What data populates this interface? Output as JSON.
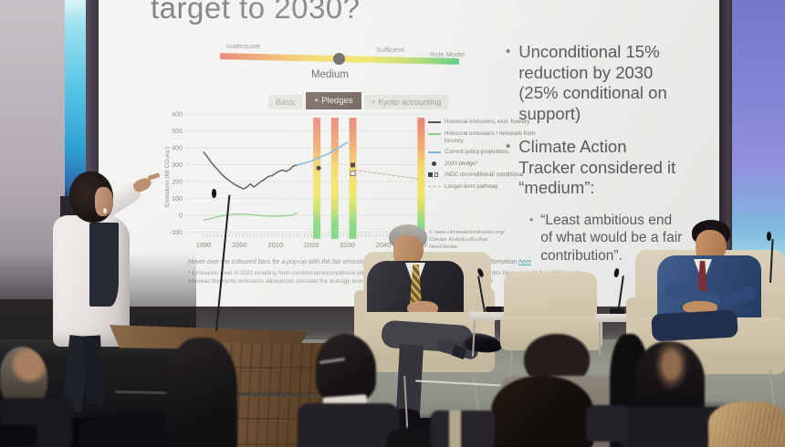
{
  "slide": {
    "title": "target to 2030?",
    "rating_scale": {
      "left_label": "Inadequate",
      "mid_label": "Sufficient",
      "right_label": "Role Model",
      "marker_label": "Medium",
      "gradient_colors": [
        "#e06a58",
        "#eda04e",
        "#efd34e",
        "#eee44f",
        "#b5d95f",
        "#52c97c"
      ]
    },
    "tabs": [
      {
        "label": "Basic",
        "active": false
      },
      {
        "label": "+ Pledges",
        "active": true
      },
      {
        "label": "+ Kyoto accounting",
        "active": false
      }
    ],
    "attribution_lines": [
      "© www.climateactiontracker.org/",
      "Climate Analytics/Ecofys/",
      "NewClimate"
    ],
    "footnote_hover": {
      "text": "Hover over the coloured bars for a pop-up with the fair emissions range per effort sharing category. More information",
      "link_text": "here"
    },
    "footnote_pledge": "* Emissions level in 2020 resulting from conditional/unconditional pledge. This differs from the Kyoto target quantities: this figure depicts final 2020 levels, whereas the Kyoto emissions allowances consider the average level of emissions over the second commitment period.",
    "bullets": [
      {
        "text": "Unconditional 15% reduction by 2030 (25% conditional on support)"
      },
      {
        "text": "Climate Action Tracker considered it “medium”:",
        "sub": "“Least ambitious end of what would be a fair contribution”."
      }
    ]
  },
  "chart_data": {
    "type": "line",
    "title": "",
    "xlabel": "",
    "ylabel": "Emissions (Mt CO₂eq.)",
    "ylim": [
      -100,
      600
    ],
    "yticks": [
      600,
      500,
      400,
      300,
      200,
      100,
      0,
      -100
    ],
    "xticks": [
      1990,
      2000,
      2010,
      2020,
      2030,
      2040,
      2050
    ],
    "grid": true,
    "legend_position": "right",
    "series": [
      {
        "name": "Historical emissions, excl. forestry",
        "color": "#3a3a3a",
        "width": 1.4,
        "style": "solid",
        "points": [
          [
            1990,
            375
          ],
          [
            1991,
            348
          ],
          [
            1992,
            318
          ],
          [
            1993,
            292
          ],
          [
            1994,
            268
          ],
          [
            1995,
            244
          ],
          [
            1996,
            224
          ],
          [
            1997,
            208
          ],
          [
            1998,
            192
          ],
          [
            1999,
            178
          ],
          [
            2000,
            168
          ],
          [
            2001,
            156
          ],
          [
            2002,
            166
          ],
          [
            2003,
            186
          ],
          [
            2004,
            168
          ],
          [
            2005,
            184
          ],
          [
            2006,
            200
          ],
          [
            2007,
            214
          ],
          [
            2008,
            230
          ],
          [
            2009,
            234
          ],
          [
            2010,
            248
          ],
          [
            2011,
            262
          ],
          [
            2012,
            268
          ],
          [
            2013,
            260
          ],
          [
            2014,
            272
          ],
          [
            2015,
            292
          ],
          [
            2016,
            297
          ]
        ]
      },
      {
        "name": "Historical emissions / removals from forestry",
        "color": "#7cc87a",
        "width": 1.2,
        "style": "solid",
        "points": [
          [
            1990,
            -28
          ],
          [
            1992,
            -20
          ],
          [
            1994,
            -8
          ],
          [
            1996,
            0
          ],
          [
            1998,
            6
          ],
          [
            2000,
            8
          ],
          [
            2002,
            6
          ],
          [
            2004,
            2
          ],
          [
            2006,
            -2
          ],
          [
            2008,
            -5
          ],
          [
            2010,
            -6
          ],
          [
            2012,
            -4
          ],
          [
            2014,
            -2
          ],
          [
            2015,
            4
          ],
          [
            2016,
            14
          ]
        ]
      },
      {
        "name": "Current policy projections",
        "color": "#6aa8d8",
        "width": 1.5,
        "style": "solid",
        "points": [
          [
            2016,
            297
          ],
          [
            2020,
            322
          ],
          [
            2025,
            368
          ],
          [
            2030,
            432
          ]
        ]
      },
      {
        "name": "Longer-term pathway",
        "color": "#c49a92",
        "width": 1,
        "style": "dashed",
        "points": [
          [
            2032,
            268
          ],
          [
            2050,
            215
          ]
        ]
      }
    ],
    "markers": [
      {
        "name": "2020 pledge*",
        "shape": "dot",
        "x": 2022,
        "y": 280
      },
      {
        "name": "INDC unconditional",
        "shape": "square-filled",
        "x": 2031.5,
        "y": 298
      },
      {
        "name": "INDC conditional",
        "shape": "square-open",
        "x": 2031.5,
        "y": 248
      }
    ],
    "fair_share_bars": {
      "years": [
        2021.5,
        2026.5,
        2031.5,
        2050.5
      ],
      "top": 578,
      "bottom": -140,
      "gradient": [
        "#e4695c",
        "#ef9b52",
        "#f2d24e",
        "#efe34e",
        "#c9de55",
        "#74d374"
      ]
    },
    "legend": [
      {
        "label": "Historical emissions, excl. forestry",
        "swatch": "line",
        "color": "#3a3a3a"
      },
      {
        "label": "Historical emissions / removals from forestry",
        "swatch": "line",
        "color": "#7cc87a"
      },
      {
        "label": "Current policy projections",
        "swatch": "line",
        "color": "#6aa8d8"
      },
      {
        "label": "2020 pledge*",
        "swatch": "dot",
        "color": "#2a2a2a"
      },
      {
        "label": "INDC unconditional/ conditional",
        "swatch": "squares",
        "color": "#2a2a2a"
      },
      {
        "label": "Longer-term pathway",
        "swatch": "dashed",
        "color": "#b49a92"
      }
    ]
  },
  "colors": {
    "tab_active_bg": "#5b4a40",
    "link": "#4fa8ac",
    "scale_marker": "#514c4b",
    "side_panel_blue": "#8486d8",
    "side_strip_cyan": "#56c3e4"
  }
}
